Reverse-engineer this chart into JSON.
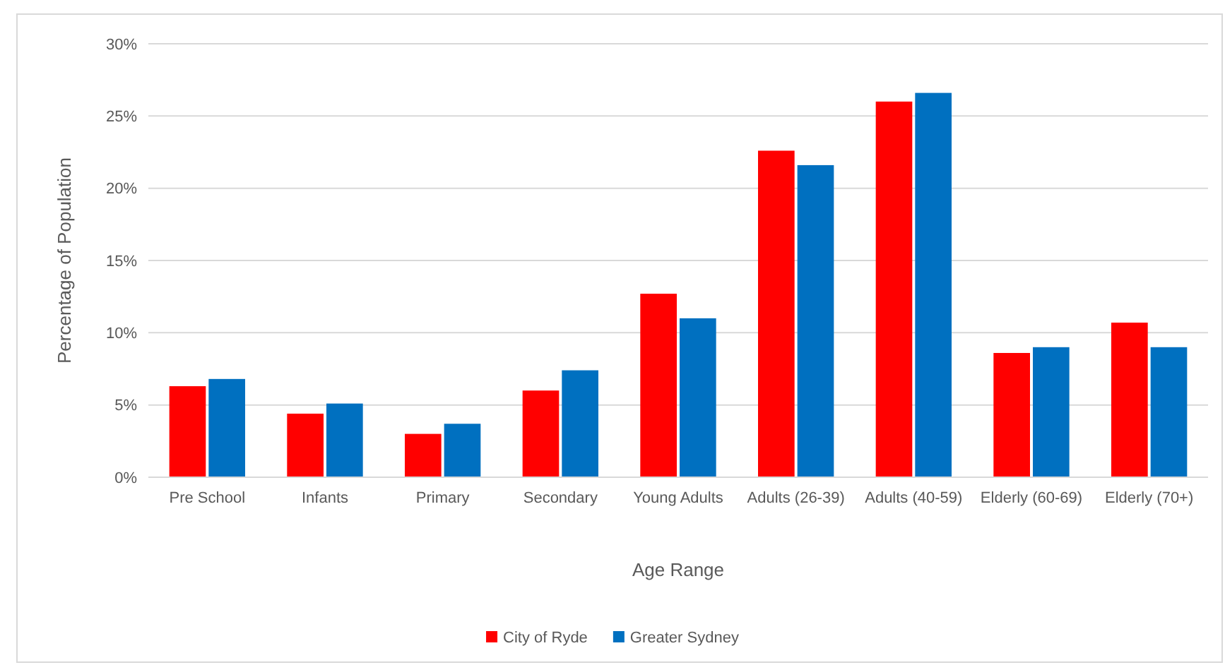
{
  "chart_data": {
    "type": "bar",
    "xlabel": "Age Range",
    "ylabel": "Percentage of Population",
    "categories": [
      "Pre School",
      "Infants",
      "Primary",
      "Secondary",
      "Young Adults",
      "Adults (26-39)",
      "Adults (40-59)",
      "Elderly (60-69)",
      "Elderly (70+)"
    ],
    "series": [
      {
        "name": "City of Ryde",
        "color": "#ff0000",
        "values": [
          6.3,
          4.4,
          3.0,
          6.0,
          12.7,
          22.6,
          26.0,
          8.6,
          10.7
        ]
      },
      {
        "name": "Greater Sydney",
        "color": "#0070c0",
        "values": [
          6.8,
          5.1,
          3.7,
          7.4,
          11.0,
          21.6,
          26.6,
          9.0,
          9.0
        ]
      }
    ],
    "ylim": [
      0,
      30
    ],
    "yticks": [
      {
        "value": 0,
        "label": "0%"
      },
      {
        "value": 5,
        "label": "5%"
      },
      {
        "value": 10,
        "label": "10%"
      },
      {
        "value": 15,
        "label": "15%"
      },
      {
        "value": 20,
        "label": "20%"
      },
      {
        "value": 25,
        "label": "25%"
      },
      {
        "value": 30,
        "label": "30%"
      }
    ],
    "grid": "y",
    "legend": "bottom"
  }
}
